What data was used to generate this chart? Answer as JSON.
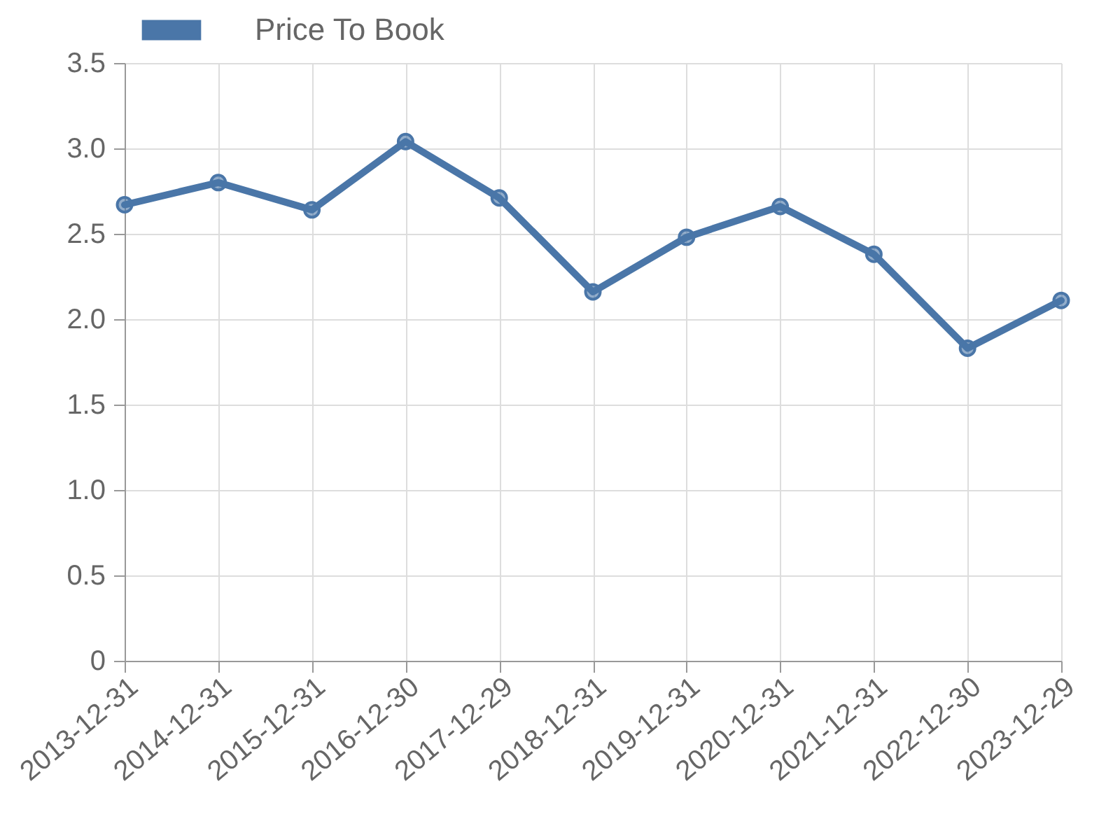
{
  "chart_data": {
    "type": "line",
    "categories": [
      "2013-12-31",
      "2014-12-31",
      "2015-12-31",
      "2016-12-30",
      "2017-12-29",
      "2018-12-31",
      "2019-12-31",
      "2020-12-31",
      "2021-12-31",
      "2022-12-30",
      "2023-12-29"
    ],
    "series": [
      {
        "name": "Price To Book",
        "color": "#4a76a8",
        "values": [
          2.67,
          2.8,
          2.64,
          3.04,
          2.71,
          2.16,
          2.48,
          2.66,
          2.38,
          1.83,
          2.11
        ]
      }
    ],
    "ylim": [
      0,
      3.5
    ],
    "yticks": [
      0,
      0.5,
      {
        "value": 1,
        "label": "1.0"
      },
      1.5,
      {
        "value": 2,
        "label": "2.0"
      },
      2.5,
      {
        "value": 3,
        "label": "3.0"
      },
      3.5
    ],
    "grid": true,
    "legend": "top",
    "marker": "circle",
    "line_style": "solid"
  }
}
